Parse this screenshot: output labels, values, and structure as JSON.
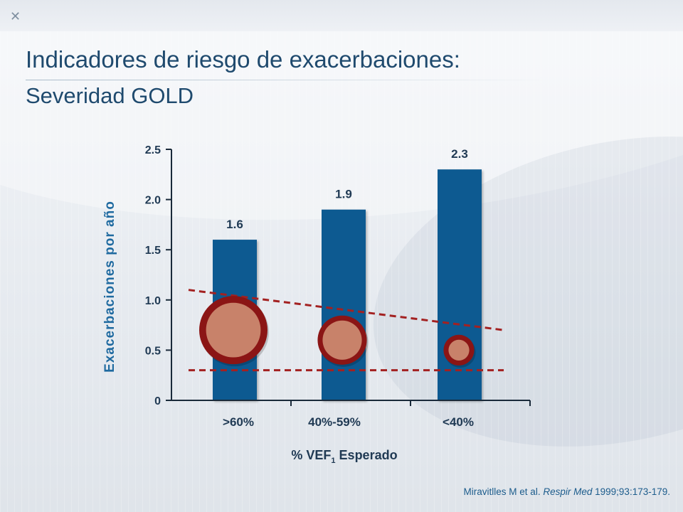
{
  "slide": {
    "title": "Indicadores de riesgo de exacerbaciones:",
    "subtitle": "Severidad GOLD",
    "citation_authors": "Miravitlles M et al.",
    "citation_journal": "Respir Med",
    "citation_ref": "1999;93:173-179."
  },
  "colors": {
    "bar": "#0f5a91",
    "circle_ring": "#8b1515",
    "circle_fill": "#c8826a",
    "dashed_line": "#a32121",
    "axis_label": "#1f6aa0",
    "tick_text": "#203a54"
  },
  "chart_data": {
    "type": "bar",
    "categories": [
      ">60%",
      "40%-59%",
      "<40%"
    ],
    "values": [
      1.6,
      1.9,
      2.3
    ],
    "data_labels": [
      "1.6",
      "1.9",
      "2.3"
    ],
    "y_ticks": [
      "0",
      "0.5",
      "1.0",
      "1.5",
      "2.0",
      "2.5"
    ],
    "y_tick_values": [
      0,
      0.5,
      1.0,
      1.5,
      2.0,
      2.5
    ],
    "ylim": [
      0,
      2.5
    ],
    "ylabel": "Exacerbaciones por año",
    "xlabel_prefix": "%  VEF",
    "xlabel_sub": "1",
    "xlabel_suffix": " Esperado",
    "grid": false,
    "circle_values": [
      0.7,
      0.6,
      0.5
    ],
    "circle_sizes": [
      1.0,
      0.72,
      0.45
    ],
    "trend_line_values": [
      1.1,
      0.7
    ],
    "baseline_line_value": 0.3
  }
}
